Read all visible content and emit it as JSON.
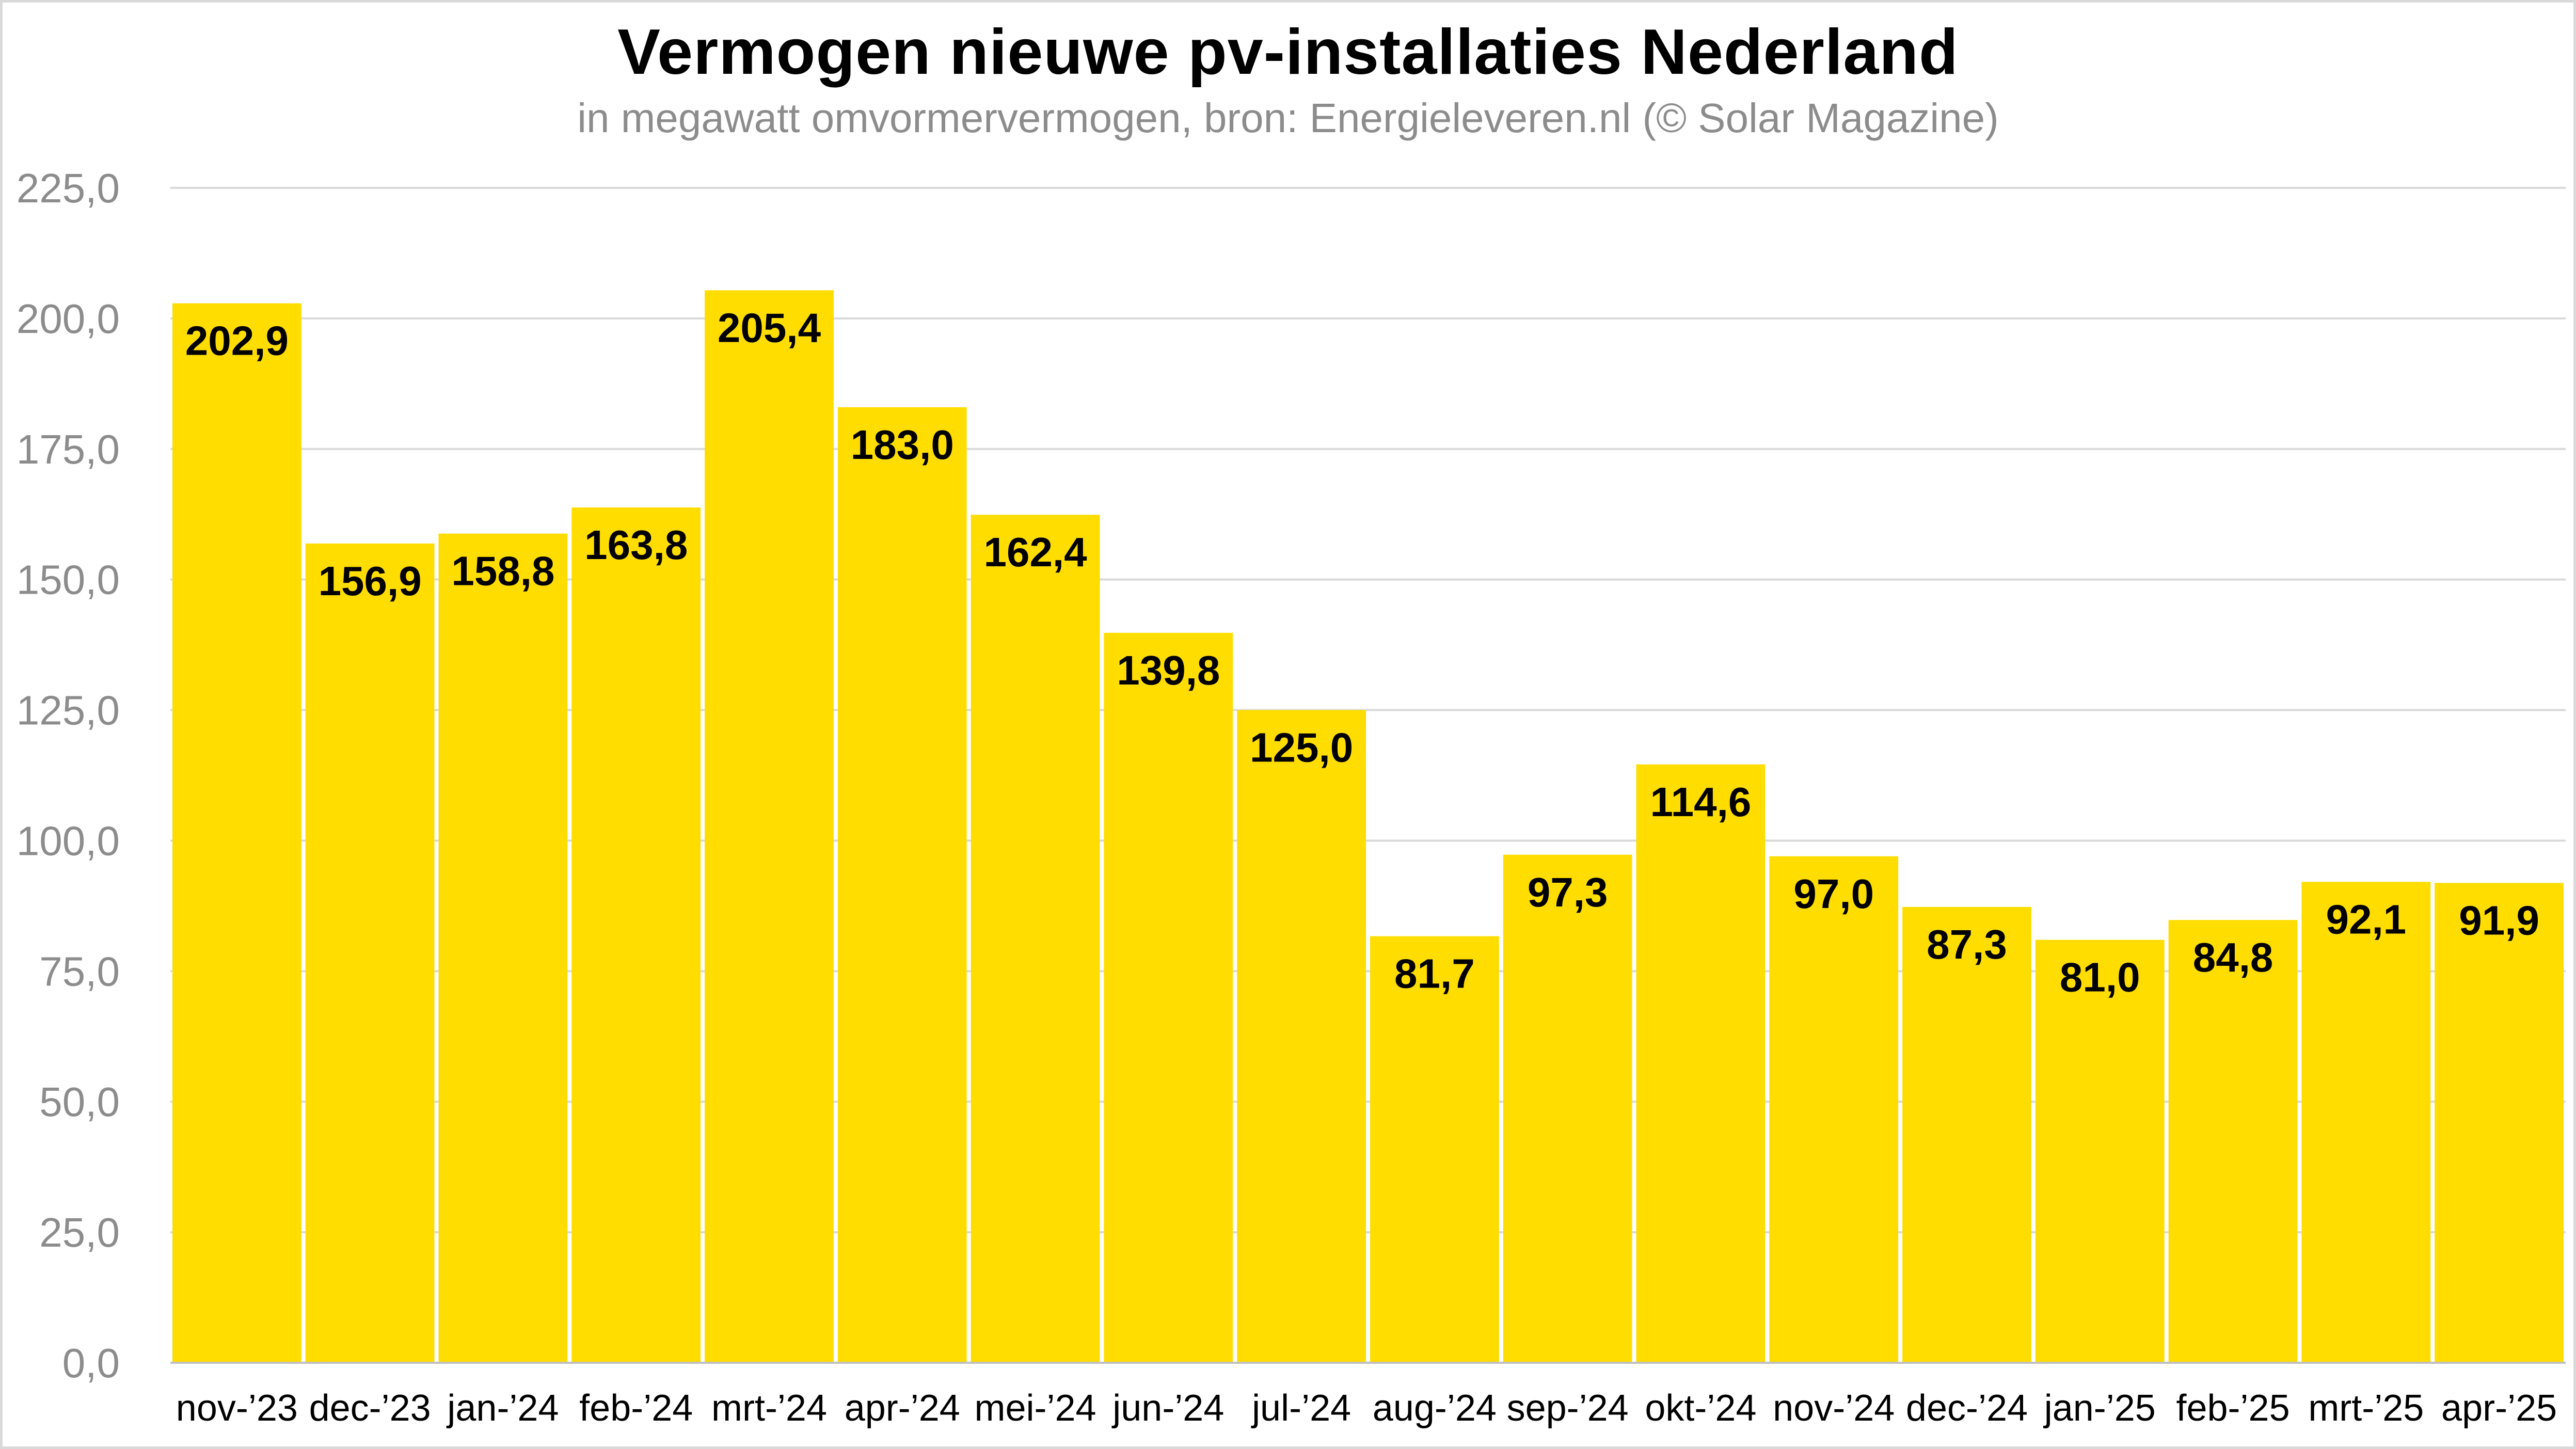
{
  "chart_data": {
    "type": "bar",
    "title": "Vermogen nieuwe pv-installaties Nederland",
    "subtitle": "in megawatt omvormervermogen, bron: Energieleveren.nl (© Solar Magazine)",
    "xlabel": "",
    "ylabel": "",
    "ylim": [
      0,
      225
    ],
    "y_ticks": [
      0,
      25,
      50,
      75,
      100,
      125,
      150,
      175,
      200,
      225
    ],
    "y_tick_labels": [
      "0,0",
      "25,0",
      "50,0",
      "75,0",
      "100,0",
      "125,0",
      "150,0",
      "175,0",
      "200,0",
      "225,0"
    ],
    "grid": true,
    "legend": "none",
    "categories": [
      "nov-’23",
      "dec-’23",
      "jan-’24",
      "feb-’24",
      "mrt-’24",
      "apr-’24",
      "mei-’24",
      "jun-’24",
      "jul-’24",
      "aug-’24",
      "sep-’24",
      "okt-’24",
      "nov-’24",
      "dec-’24",
      "jan-’25",
      "feb-’25",
      "mrt-’25",
      "apr-’25"
    ],
    "values": [
      202.9,
      156.9,
      158.8,
      163.8,
      205.4,
      183.0,
      162.4,
      139.8,
      125.0,
      81.7,
      97.3,
      114.6,
      97.0,
      87.3,
      81.0,
      84.8,
      92.1,
      91.9
    ],
    "value_labels": [
      "202,9",
      "156,9",
      "158,8",
      "163,8",
      "205,4",
      "183,0",
      "162,4",
      "139,8",
      "125,0",
      "81,7",
      "97,3",
      "114,6",
      "97,0",
      "87,3",
      "81,0",
      "84,8",
      "92,1",
      "91,9"
    ],
    "colors": {
      "bar": "#FFDD00",
      "grid": "#d9d9d9",
      "axis": "#bfbfbf"
    }
  }
}
